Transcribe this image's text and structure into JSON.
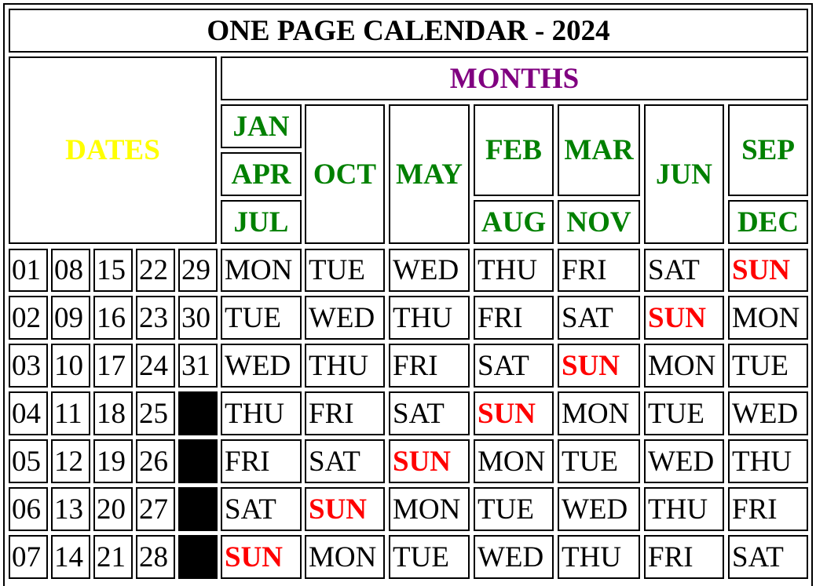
{
  "title": "ONE PAGE CALENDAR - 2024",
  "dates_label": "DATES",
  "months_label": "MONTHS",
  "colors": {
    "dates_label": "#ffff00",
    "months_label": "#800080",
    "month_name": "#008000",
    "sunday": "#ff0000",
    "text": "#000000"
  },
  "month_columns": [
    [
      {
        "label": "JAN",
        "slot": 0
      },
      {
        "label": "APR",
        "slot": 1
      },
      {
        "label": "JUL",
        "slot": 2
      }
    ],
    [
      {
        "label": "OCT",
        "slot": "all"
      }
    ],
    [
      {
        "label": "MAY",
        "slot": "all"
      }
    ],
    [
      {
        "label": "FEB",
        "slot": "top2"
      },
      {
        "label": "AUG",
        "slot": 2
      }
    ],
    [
      {
        "label": "MAR",
        "slot": "top2"
      },
      {
        "label": "NOV",
        "slot": 2
      }
    ],
    [
      {
        "label": "JUN",
        "slot": "all"
      }
    ],
    [
      {
        "label": "SEP",
        "slot": "top2"
      },
      {
        "label": "DEC",
        "slot": 2
      }
    ]
  ],
  "date_rows": [
    [
      "01",
      "08",
      "15",
      "22",
      "29"
    ],
    [
      "02",
      "09",
      "16",
      "23",
      "30"
    ],
    [
      "03",
      "10",
      "17",
      "24",
      "31"
    ],
    [
      "04",
      "11",
      "18",
      "25",
      ""
    ],
    [
      "05",
      "12",
      "19",
      "26",
      ""
    ],
    [
      "06",
      "13",
      "20",
      "27",
      ""
    ],
    [
      "07",
      "14",
      "21",
      "28",
      ""
    ]
  ],
  "day_rows": [
    [
      "MON",
      "TUE",
      "WED",
      "THU",
      "FRI",
      "SAT",
      "SUN"
    ],
    [
      "TUE",
      "WED",
      "THU",
      "FRI",
      "SAT",
      "SUN",
      "MON"
    ],
    [
      "WED",
      "THU",
      "FRI",
      "SAT",
      "SUN",
      "MON",
      "TUE"
    ],
    [
      "THU",
      "FRI",
      "SAT",
      "SUN",
      "MON",
      "TUE",
      "WED"
    ],
    [
      "FRI",
      "SAT",
      "SUN",
      "MON",
      "TUE",
      "WED",
      "THU"
    ],
    [
      "SAT",
      "SUN",
      "MON",
      "TUE",
      "WED",
      "THU",
      "FRI"
    ],
    [
      "SUN",
      "MON",
      "TUE",
      "WED",
      "THU",
      "FRI",
      "SAT"
    ]
  ]
}
